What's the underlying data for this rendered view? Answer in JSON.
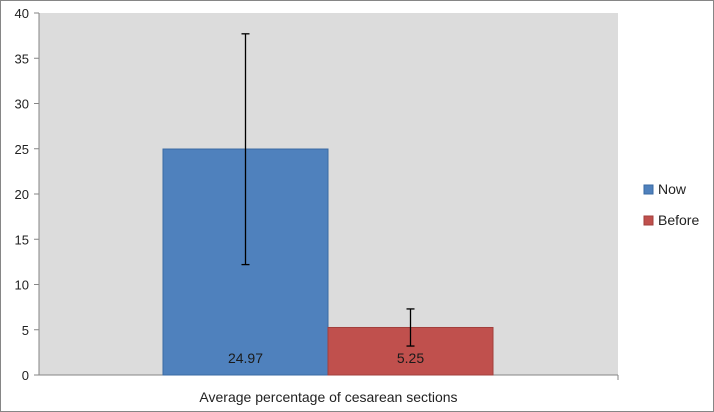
{
  "chart_data": {
    "type": "bar",
    "categories": [
      "Average percentage of cesarean sections"
    ],
    "series": [
      {
        "name": "Now",
        "values": [
          24.97
        ],
        "error_low": [
          12.2
        ],
        "error_high": [
          37.7
        ],
        "color": "#4f81bd",
        "data_label": "24.97"
      },
      {
        "name": "Before",
        "values": [
          5.25
        ],
        "error_low": [
          3.2
        ],
        "error_high": [
          7.3
        ],
        "color": "#c0504d",
        "data_label": "5.25"
      }
    ],
    "ylim": [
      0,
      40
    ],
    "yticks": [
      "0",
      "5",
      "10",
      "15",
      "20",
      "25",
      "30",
      "35",
      "40"
    ],
    "plot_background": "#dcdcdc",
    "grid": false,
    "legend_position": "right"
  }
}
